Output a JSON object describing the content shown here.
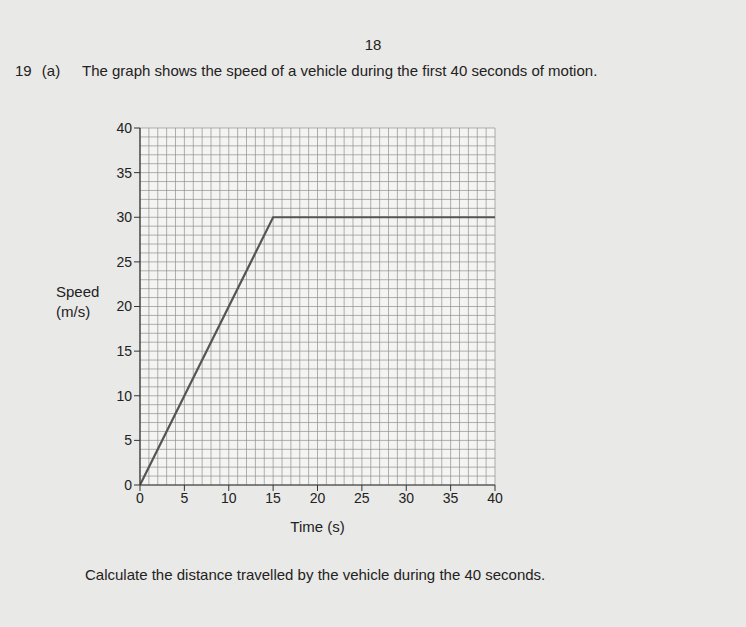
{
  "page_number": "18",
  "question": "19 (a)",
  "text": "The graph shows the speed of a vehicle during the first 40 seconds of motion.",
  "chart_data": {
    "type": "line",
    "x_label": "Time (s)",
    "y_label": "Speed (m/s)",
    "x": [
      0,
      15,
      40
    ],
    "values": [
      0,
      30,
      30
    ],
    "color": "#555555",
    "xlim": [
      0,
      40
    ],
    "ylim": [
      0,
      40
    ],
    "xticks": [
      0,
      5,
      10,
      15,
      20,
      25,
      30,
      35,
      40
    ],
    "yticks": [
      0,
      5,
      10,
      15,
      20,
      25,
      30,
      35,
      40
    ],
    "grid": true
  },
  "instruction": "Calculate the distance travelled by the vehicle during the 40 seconds."
}
